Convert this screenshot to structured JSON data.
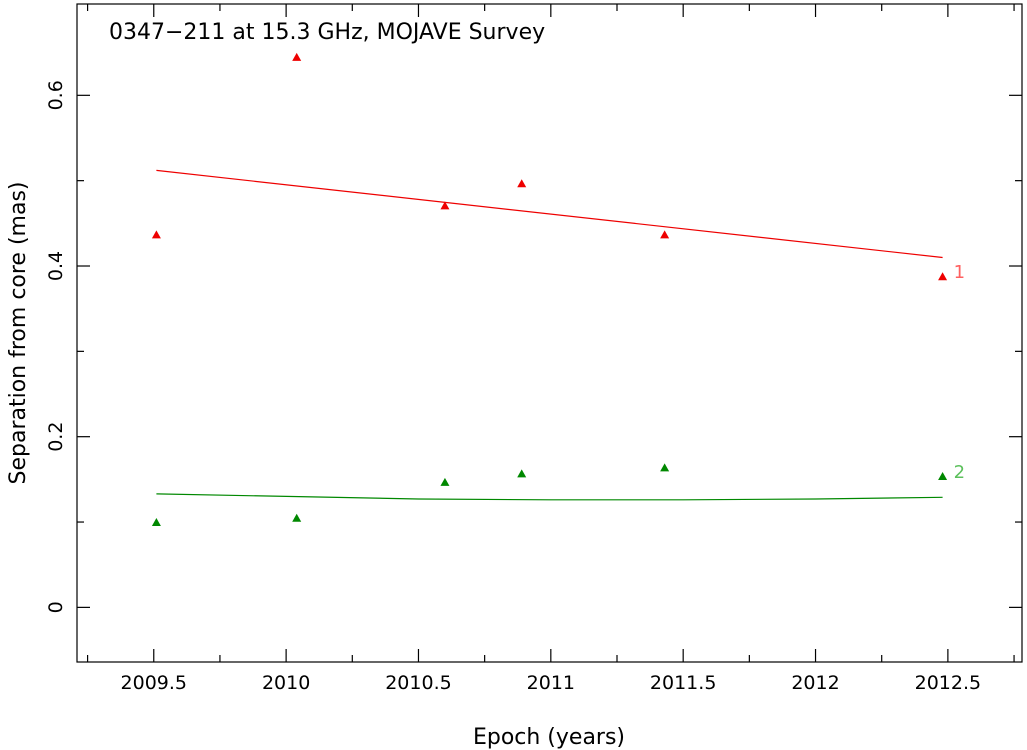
{
  "chart_data": {
    "type": "scatter",
    "title": "0347−211 at 15.3 GHz, MOJAVE Survey",
    "xlabel": "Epoch (years)",
    "ylabel": "Separation from core (mas)",
    "xlim": [
      2009.21,
      2012.78
    ],
    "ylim": [
      -0.064,
      0.707
    ],
    "x_ticks": [
      2009.5,
      2010,
      2010.5,
      2011,
      2011.5,
      2012,
      2012.5
    ],
    "x_tick_labels": [
      "2009.5",
      "2010",
      "2010.5",
      "2011",
      "2011.5",
      "2012",
      "2012.5"
    ],
    "y_ticks": [
      0,
      0.2,
      0.4,
      0.6
    ],
    "y_tick_labels": [
      "0",
      "0.2",
      "0.4",
      "0.6"
    ],
    "grid": false,
    "series": [
      {
        "name": "1",
        "color": "#ee0000",
        "marker": "triangle",
        "points": [
          {
            "x": 2009.51,
            "y": 0.437
          },
          {
            "x": 2010.04,
            "y": 0.645
          },
          {
            "x": 2010.6,
            "y": 0.471
          },
          {
            "x": 2010.89,
            "y": 0.497
          },
          {
            "x": 2011.43,
            "y": 0.437
          },
          {
            "x": 2012.48,
            "y": 0.388
          }
        ],
        "fit": {
          "x": [
            2009.51,
            2012.48
          ],
          "y": [
            0.512,
            0.41
          ]
        }
      },
      {
        "name": "2",
        "color": "#008800",
        "marker": "triangle",
        "points": [
          {
            "x": 2009.51,
            "y": 0.1
          },
          {
            "x": 2010.04,
            "y": 0.105
          },
          {
            "x": 2010.6,
            "y": 0.147
          },
          {
            "x": 2010.89,
            "y": 0.157
          },
          {
            "x": 2011.43,
            "y": 0.164
          },
          {
            "x": 2012.48,
            "y": 0.154
          }
        ],
        "fit": {
          "x": [
            2009.51,
            2010.0,
            2010.5,
            2011.0,
            2011.5,
            2012.0,
            2012.48
          ],
          "y": [
            0.133,
            0.13,
            0.127,
            0.126,
            0.126,
            0.127,
            0.129
          ]
        }
      }
    ],
    "series_label_colors": [
      "#ff6060",
      "#5cc05c"
    ]
  }
}
